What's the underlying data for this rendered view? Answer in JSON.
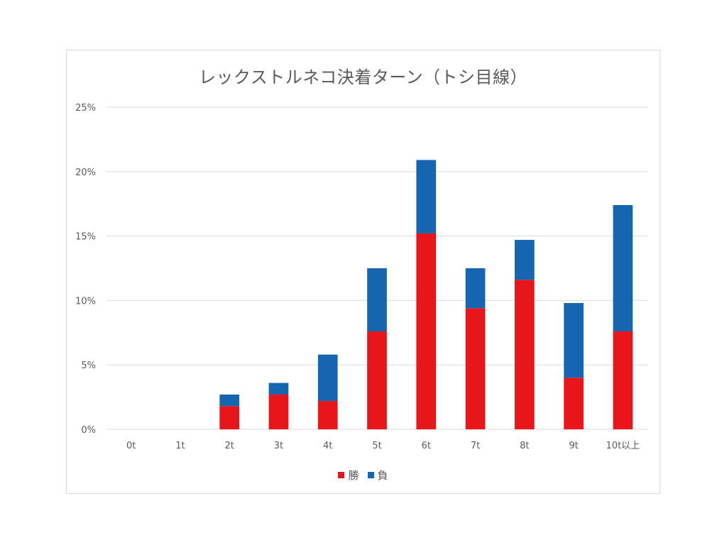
{
  "chart_data": {
    "type": "bar",
    "stacked": true,
    "title": "レックストルネコ決着ターン（トシ目線）",
    "xlabel": "",
    "ylabel": "",
    "categories": [
      "0t",
      "1t",
      "2t",
      "3t",
      "4t",
      "5t",
      "6t",
      "7t",
      "8t",
      "9t",
      "10t以上"
    ],
    "series": [
      {
        "name": "勝",
        "color": "#e8151b",
        "values": [
          0,
          0,
          1.8,
          2.7,
          2.2,
          7.6,
          15.2,
          9.4,
          11.6,
          4.0,
          7.6
        ]
      },
      {
        "name": "負",
        "color": "#1565b0",
        "values": [
          0,
          0,
          0.9,
          0.9,
          3.6,
          4.9,
          5.7,
          3.1,
          3.1,
          5.8,
          9.8
        ]
      }
    ],
    "ylim": [
      0,
      25
    ],
    "yticks": [
      0,
      5,
      10,
      15,
      20,
      25
    ],
    "ytick_format": "%",
    "grid": true,
    "legend_position": "bottom"
  }
}
